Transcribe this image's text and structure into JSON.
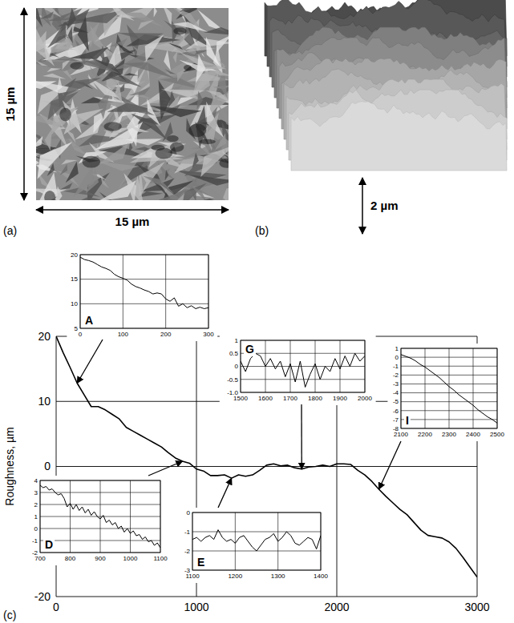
{
  "figure": {
    "panel_labels": [
      "(a)",
      "(b)",
      "(c)"
    ],
    "image_a": {
      "side_label": "15 µm",
      "bottom_label": "15 µm"
    },
    "image_b": {
      "height_label": "2 µm"
    }
  },
  "chart_data": [
    {
      "type": "line",
      "ylabel": "Roughness, µm",
      "color": "#000000",
      "x": [
        0,
        50,
        100,
        150,
        200,
        250,
        300,
        350,
        400,
        450,
        500,
        550,
        600,
        650,
        700,
        750,
        800,
        850,
        900,
        950,
        1000,
        1050,
        1100,
        1150,
        1200,
        1250,
        1300,
        1350,
        1400,
        1450,
        1500,
        1550,
        1600,
        1650,
        1700,
        1750,
        1800,
        1850,
        1900,
        1950,
        2000,
        2050,
        2100,
        2150,
        2200,
        2250,
        2300,
        2350,
        2400,
        2450,
        2500,
        2550,
        2600,
        2650,
        2700,
        2750,
        2800,
        2850,
        2900,
        2950,
        3000
      ],
      "values": [
        20,
        17.5,
        15.2,
        12.8,
        11,
        9.2,
        9.2,
        8.7,
        8,
        7.3,
        6,
        5.4,
        4.8,
        4.2,
        3.6,
        3,
        2.1,
        1.3,
        0.8,
        0.5,
        -0.4,
        -0.7,
        -1.4,
        -1.4,
        -1.3,
        -1.8,
        -1.3,
        -1.5,
        -1.3,
        -0.6,
        0.2,
        0.4,
        0.1,
        0.2,
        -0.2,
        -0.4,
        -0.1,
        0,
        0.2,
        0,
        0.4,
        0.4,
        0.3,
        -0.6,
        -1.3,
        -2.3,
        -3.5,
        -4.6,
        -5.6,
        -6.6,
        -7.4,
        -8.6,
        -9.8,
        -10.6,
        -10.8,
        -11,
        -11.6,
        -12.6,
        -14,
        -15.5,
        -17
      ],
      "xlim": [
        0,
        3000
      ],
      "xticks": [
        0,
        1000,
        2000,
        3000
      ],
      "ylim": [
        -20,
        20
      ],
      "yticks": [
        -20,
        0,
        10,
        20
      ],
      "grid": true
    },
    {
      "type": "line",
      "title": "A",
      "color": "#000000",
      "x": [
        0,
        10,
        20,
        30,
        40,
        50,
        60,
        70,
        80,
        90,
        100,
        110,
        120,
        130,
        140,
        150,
        160,
        170,
        180,
        190,
        200,
        210,
        220,
        230,
        240,
        250,
        260,
        270,
        280,
        290,
        300
      ],
      "values": [
        19.5,
        19,
        18.8,
        18.5,
        18,
        17.5,
        17.2,
        16.8,
        16,
        15.5,
        15.2,
        14.8,
        14,
        13.5,
        13.2,
        12.8,
        12.5,
        12,
        12.2,
        12,
        11,
        10.5,
        11.2,
        9.5,
        10,
        9.2,
        9.6,
        9,
        9.3,
        9,
        9.2
      ],
      "xlim": [
        0,
        300
      ],
      "xticks": [
        0,
        100,
        200,
        300
      ],
      "ylim": [
        5,
        20
      ],
      "yticks": [
        5,
        10,
        15,
        20
      ],
      "grid": true
    },
    {
      "type": "line",
      "title": "D",
      "color": "#000000",
      "x": [
        700,
        710,
        720,
        730,
        740,
        750,
        760,
        770,
        780,
        790,
        800,
        810,
        820,
        830,
        840,
        850,
        860,
        870,
        880,
        890,
        900,
        910,
        920,
        930,
        940,
        950,
        960,
        970,
        980,
        990,
        1000,
        1010,
        1020,
        1030,
        1040,
        1050,
        1060,
        1070,
        1080,
        1090,
        1100
      ],
      "values": [
        3.6,
        3.4,
        3.5,
        3.2,
        3.3,
        3,
        2.8,
        2.9,
        2.5,
        1.8,
        2.1,
        1.6,
        2,
        1.5,
        1.8,
        1.3,
        1.6,
        1.1,
        1.4,
        1,
        0.8,
        1.1,
        0.5,
        0.7,
        0.3,
        0.5,
        0,
        0.2,
        -0.3,
        0,
        -0.4,
        -0.2,
        -0.6,
        -0.5,
        -0.9,
        -0.7,
        -1.1,
        -1,
        -1.4,
        -1.2,
        -1.6
      ],
      "xlim": [
        700,
        1100
      ],
      "xticks": [
        700,
        800,
        900,
        1000,
        1100
      ],
      "ylim": [
        -2,
        4
      ],
      "yticks": [
        -2,
        -1,
        0,
        1,
        2,
        3,
        4
      ],
      "grid": true
    },
    {
      "type": "line",
      "title": "E",
      "color": "#000000",
      "x": [
        1100,
        1110,
        1120,
        1130,
        1140,
        1150,
        1160,
        1170,
        1180,
        1190,
        1200,
        1210,
        1220,
        1230,
        1240,
        1250,
        1260,
        1270,
        1280,
        1290,
        1300,
        1310,
        1320,
        1330,
        1340,
        1350,
        1360,
        1370,
        1380,
        1390,
        1400
      ],
      "values": [
        -1.4,
        -1.3,
        -1.5,
        -1.3,
        -1.2,
        -1.4,
        -0.9,
        -1.3,
        -1.5,
        -1.4,
        -1.6,
        -1.3,
        -1.2,
        -1.5,
        -1.8,
        -2,
        -1.7,
        -1.4,
        -1.3,
        -1.1,
        -1.5,
        -1.3,
        -1,
        -1.2,
        -1.6,
        -1.7,
        -1.5,
        -1.3,
        -1.4,
        -1.9,
        -1.2
      ],
      "xlim": [
        1100,
        1400
      ],
      "xticks": [
        1100,
        1200,
        1300,
        1400
      ],
      "ylim": [
        -3,
        0
      ],
      "yticks": [
        -3,
        -2,
        -1,
        0
      ],
      "grid": true
    },
    {
      "type": "line",
      "title": "G",
      "color": "#000000",
      "x": [
        1500,
        1520,
        1540,
        1560,
        1580,
        1600,
        1620,
        1640,
        1660,
        1680,
        1700,
        1720,
        1740,
        1760,
        1780,
        1800,
        1820,
        1840,
        1860,
        1880,
        1900,
        1920,
        1940,
        1960,
        1980,
        2000
      ],
      "values": [
        0.2,
        -0.2,
        0.3,
        0.5,
        0.4,
        0,
        0.3,
        -0.1,
        0.2,
        -0.4,
        0.1,
        -0.6,
        0.2,
        -0.8,
        -0.3,
        0.1,
        -0.5,
        0,
        -0.2,
        0.3,
        -0.1,
        0.4,
        0,
        0.5,
        0.2,
        0.4
      ],
      "xlim": [
        1500,
        2000
      ],
      "xticks": [
        1500,
        1600,
        1700,
        1800,
        1900,
        2000
      ],
      "ylim": [
        -1,
        1
      ],
      "yticks": [
        {
          "value": -1,
          "label": "-1.0"
        },
        -0.5,
        0,
        0.5,
        1
      ],
      "grid": true
    },
    {
      "type": "line",
      "title": "I",
      "color": "#000000",
      "x": [
        2100,
        2120,
        2140,
        2160,
        2180,
        2200,
        2220,
        2240,
        2260,
        2280,
        2300,
        2320,
        2340,
        2360,
        2380,
        2400,
        2420,
        2440,
        2460,
        2480,
        2500
      ],
      "values": [
        0.3,
        0.1,
        -0.1,
        -0.4,
        -0.8,
        -1.1,
        -1.5,
        -1.9,
        -2.3,
        -2.8,
        -3.3,
        -3.7,
        -4.2,
        -4.6,
        -5,
        -5.4,
        -5.9,
        -6.3,
        -6.7,
        -7,
        -7.4
      ],
      "xlim": [
        2100,
        2500
      ],
      "xticks": [
        2100,
        2200,
        2300,
        2400,
        2500
      ],
      "ylim": [
        -8,
        1
      ],
      "yticks": [
        -8,
        -7,
        -6,
        -5,
        -4,
        -3,
        -2,
        -1,
        0,
        1
      ],
      "grid": true
    }
  ]
}
